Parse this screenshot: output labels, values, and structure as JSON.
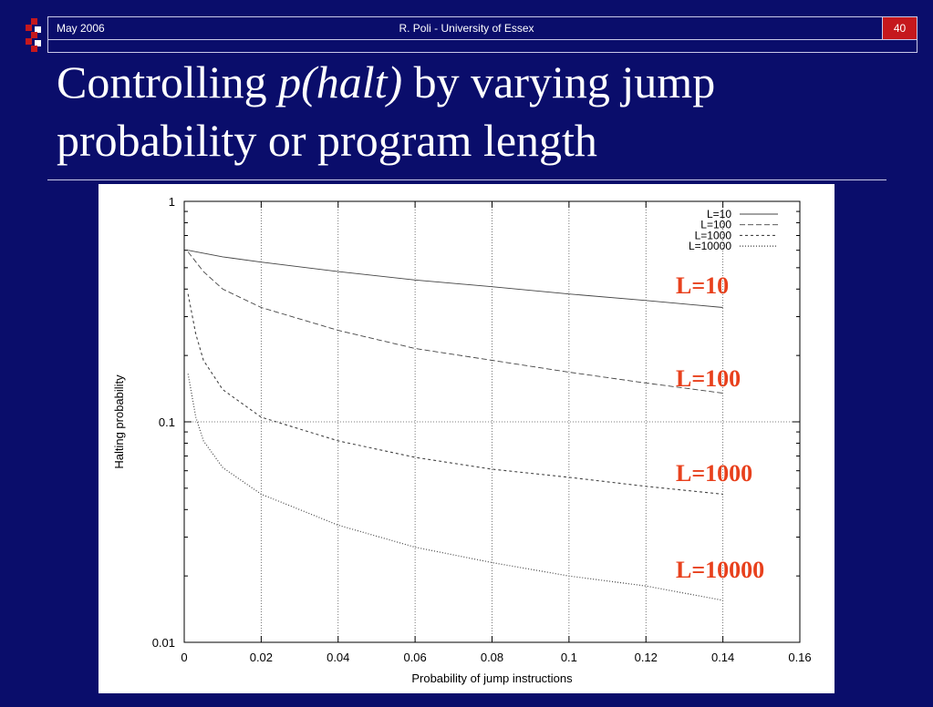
{
  "header": {
    "date": "May 2006",
    "author": "R. Poli - University of Essex",
    "page_number": "40",
    "accent_color": "#c5181d",
    "background_color": "#0a0d6b"
  },
  "slide": {
    "title_part1": "Controlling ",
    "title_italic": "p(halt)",
    "title_part2": " by varying jump",
    "title_line2": "probability or program length"
  },
  "chart_data": {
    "type": "line",
    "xlabel": "Probability of jump instructions",
    "ylabel": "Halting probability",
    "xlim": [
      0,
      0.16
    ],
    "ylim": [
      0.01,
      1
    ],
    "y_scale": "log",
    "grid": true,
    "legend_position": "top-right",
    "x_ticks": [
      "0",
      "0.02",
      "0.04",
      "0.06",
      "0.08",
      "0.1",
      "0.12",
      "0.14",
      "0.16"
    ],
    "y_ticks": [
      "0.01",
      "0.1",
      "1"
    ],
    "series": [
      {
        "name": "L=10",
        "dash": "solid",
        "x": [
          0.001,
          0.01,
          0.02,
          0.04,
          0.06,
          0.08,
          0.1,
          0.12,
          0.14
        ],
        "y": [
          0.6,
          0.56,
          0.53,
          0.48,
          0.44,
          0.41,
          0.38,
          0.355,
          0.33
        ]
      },
      {
        "name": "L=100",
        "dash": "dashed",
        "x": [
          0.001,
          0.005,
          0.01,
          0.02,
          0.04,
          0.06,
          0.08,
          0.1,
          0.12,
          0.14
        ],
        "y": [
          0.59,
          0.48,
          0.4,
          0.33,
          0.26,
          0.215,
          0.19,
          0.168,
          0.15,
          0.135
        ]
      },
      {
        "name": "L=1000",
        "dash": "short-dashed",
        "x": [
          0.001,
          0.003,
          0.005,
          0.01,
          0.02,
          0.04,
          0.06,
          0.08,
          0.1,
          0.12,
          0.14
        ],
        "y": [
          0.38,
          0.25,
          0.19,
          0.14,
          0.105,
          0.082,
          0.069,
          0.061,
          0.056,
          0.051,
          0.047
        ]
      },
      {
        "name": "L=10000",
        "dash": "dotted",
        "x": [
          0.001,
          0.003,
          0.005,
          0.01,
          0.02,
          0.04,
          0.06,
          0.08,
          0.1,
          0.12,
          0.14
        ],
        "y": [
          0.165,
          0.105,
          0.082,
          0.062,
          0.047,
          0.034,
          0.027,
          0.023,
          0.02,
          0.018,
          0.0155
        ]
      }
    ],
    "annotations": [
      "L=10",
      "L=100",
      "L=1000",
      "L=10000"
    ]
  }
}
